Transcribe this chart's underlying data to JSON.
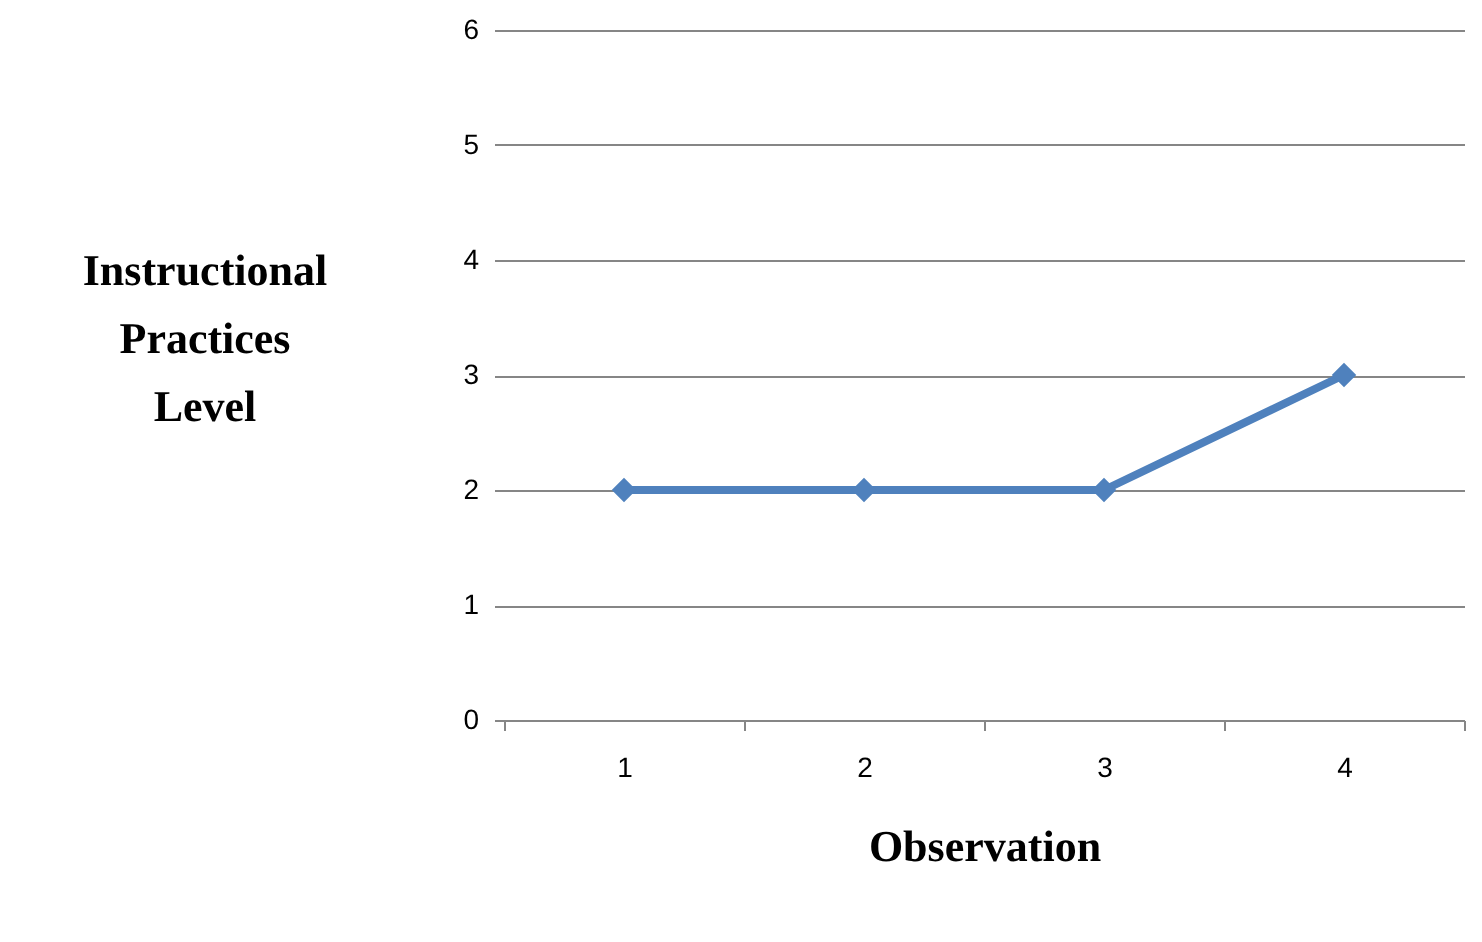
{
  "chart_data": {
    "type": "line",
    "xlabel": "Observation",
    "ylabel": "Instructional Practices Level",
    "categories": [
      "1",
      "2",
      "3",
      "4"
    ],
    "series": [
      {
        "color": "#4f81bd",
        "values": [
          2,
          2,
          2,
          3
        ]
      }
    ],
    "ylim": [
      0,
      6
    ],
    "yticks": [
      0,
      1,
      2,
      3,
      4,
      5,
      6
    ],
    "grid": "y",
    "marker": "diamond",
    "line_style": "solid"
  }
}
